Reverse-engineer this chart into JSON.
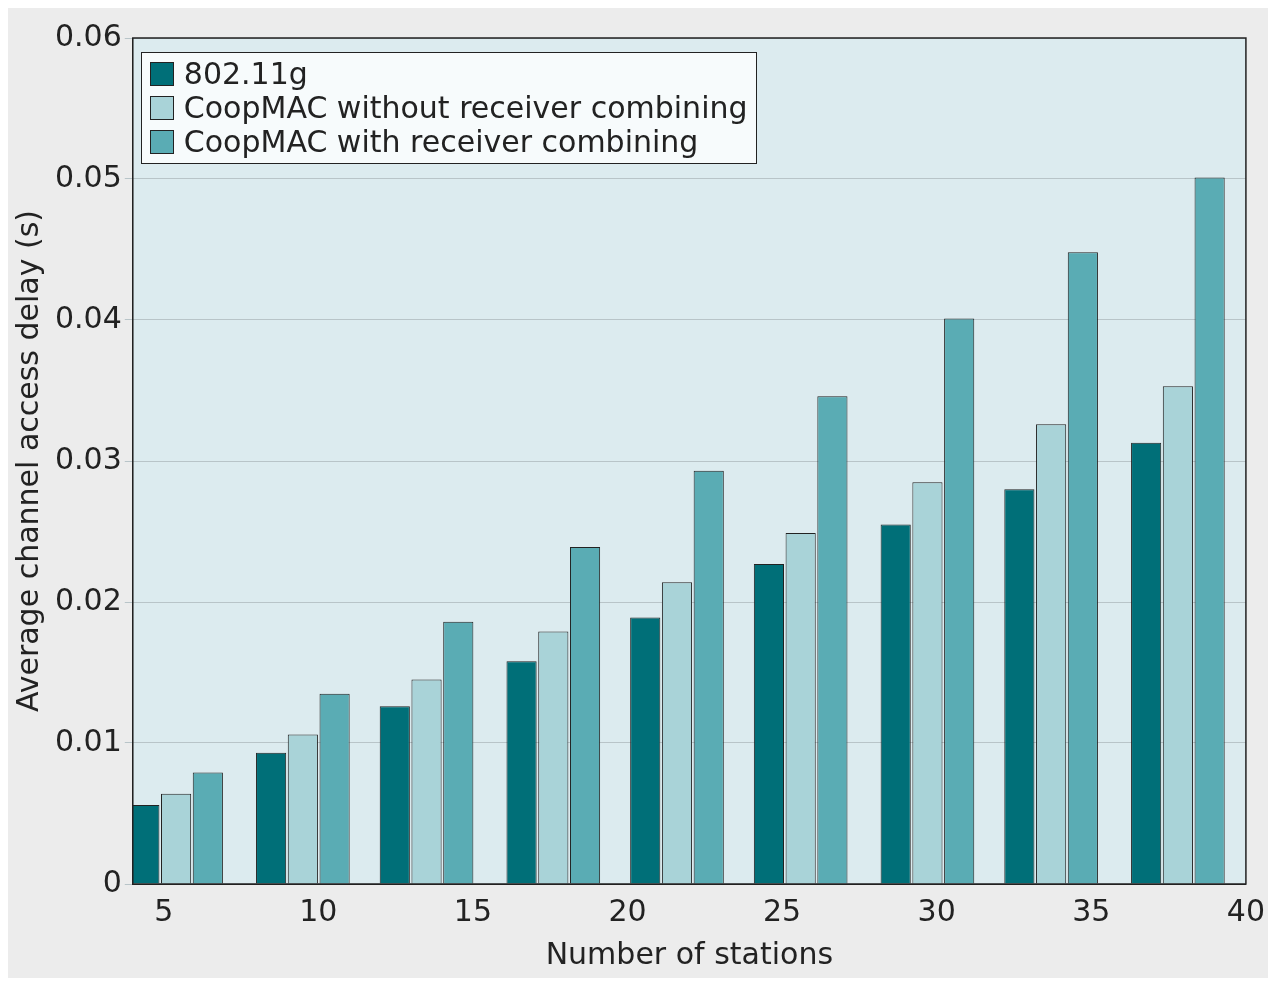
{
  "chart_data": {
    "type": "bar",
    "xlabel": "Number of stations",
    "ylabel": "Average channel access delay (s)",
    "x": [
      5.4,
      9.5,
      13.5,
      17.6,
      21.6,
      25.6,
      29.7,
      33.7,
      37.8
    ],
    "xlim": [
      4,
      40
    ],
    "xticks": [
      5,
      10,
      15,
      20,
      25,
      30,
      35,
      40
    ],
    "ylim": [
      0,
      0.06
    ],
    "yticks": [
      0,
      0.01,
      0.02,
      0.03,
      0.04,
      0.05,
      0.06
    ],
    "grid": "y",
    "legend": "top left",
    "series": [
      {
        "name": "802.11g",
        "color": "#006f78",
        "values": [
          0.0056,
          0.0093,
          0.0126,
          0.0158,
          0.0189,
          0.0227,
          0.0255,
          0.028,
          0.0313
        ]
      },
      {
        "name": "CoopMAC without receiver combining",
        "color": "#a9d3d8",
        "values": [
          0.0064,
          0.0106,
          0.0145,
          0.0179,
          0.0214,
          0.0249,
          0.0285,
          0.0326,
          0.0353
        ]
      },
      {
        "name": "CoopMAC with receiver combining",
        "color": "#5aacb4",
        "values": [
          0.0079,
          0.0135,
          0.0186,
          0.0239,
          0.0293,
          0.0346,
          0.0401,
          0.0448,
          0.0501
        ]
      }
    ]
  }
}
